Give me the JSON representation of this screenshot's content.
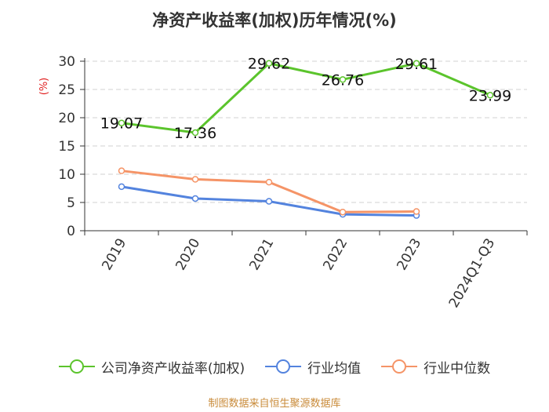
{
  "chart_data": {
    "type": "line",
    "title": "净资产收益率(加权)历年情况(%)",
    "ylabel": "(%)",
    "xlabel": "",
    "categories": [
      "2019",
      "2020",
      "2021",
      "2022",
      "2023",
      "2024Q1-Q3"
    ],
    "ylim": [
      0,
      30
    ],
    "yticks": [
      0,
      5,
      10,
      15,
      20,
      25,
      30
    ],
    "grid": "horizontal dashed",
    "legend_position": "bottom",
    "series": [
      {
        "name": "公司净资产收益率(加权)",
        "color": "#5bc42c",
        "values": [
          19.07,
          17.36,
          29.62,
          26.76,
          29.61,
          23.99
        ],
        "labels": [
          "19.07",
          "17.36",
          "29.62",
          "26.76",
          "29.61",
          "23.99"
        ]
      },
      {
        "name": "行业均值",
        "color": "#5383de",
        "values": [
          7.8,
          5.7,
          5.2,
          2.9,
          2.7,
          null
        ]
      },
      {
        "name": "行业中位数",
        "color": "#f59467",
        "values": [
          10.6,
          9.1,
          8.6,
          3.3,
          3.4,
          null
        ]
      }
    ]
  },
  "source_note": "制图数据来自恒生聚源数据库"
}
